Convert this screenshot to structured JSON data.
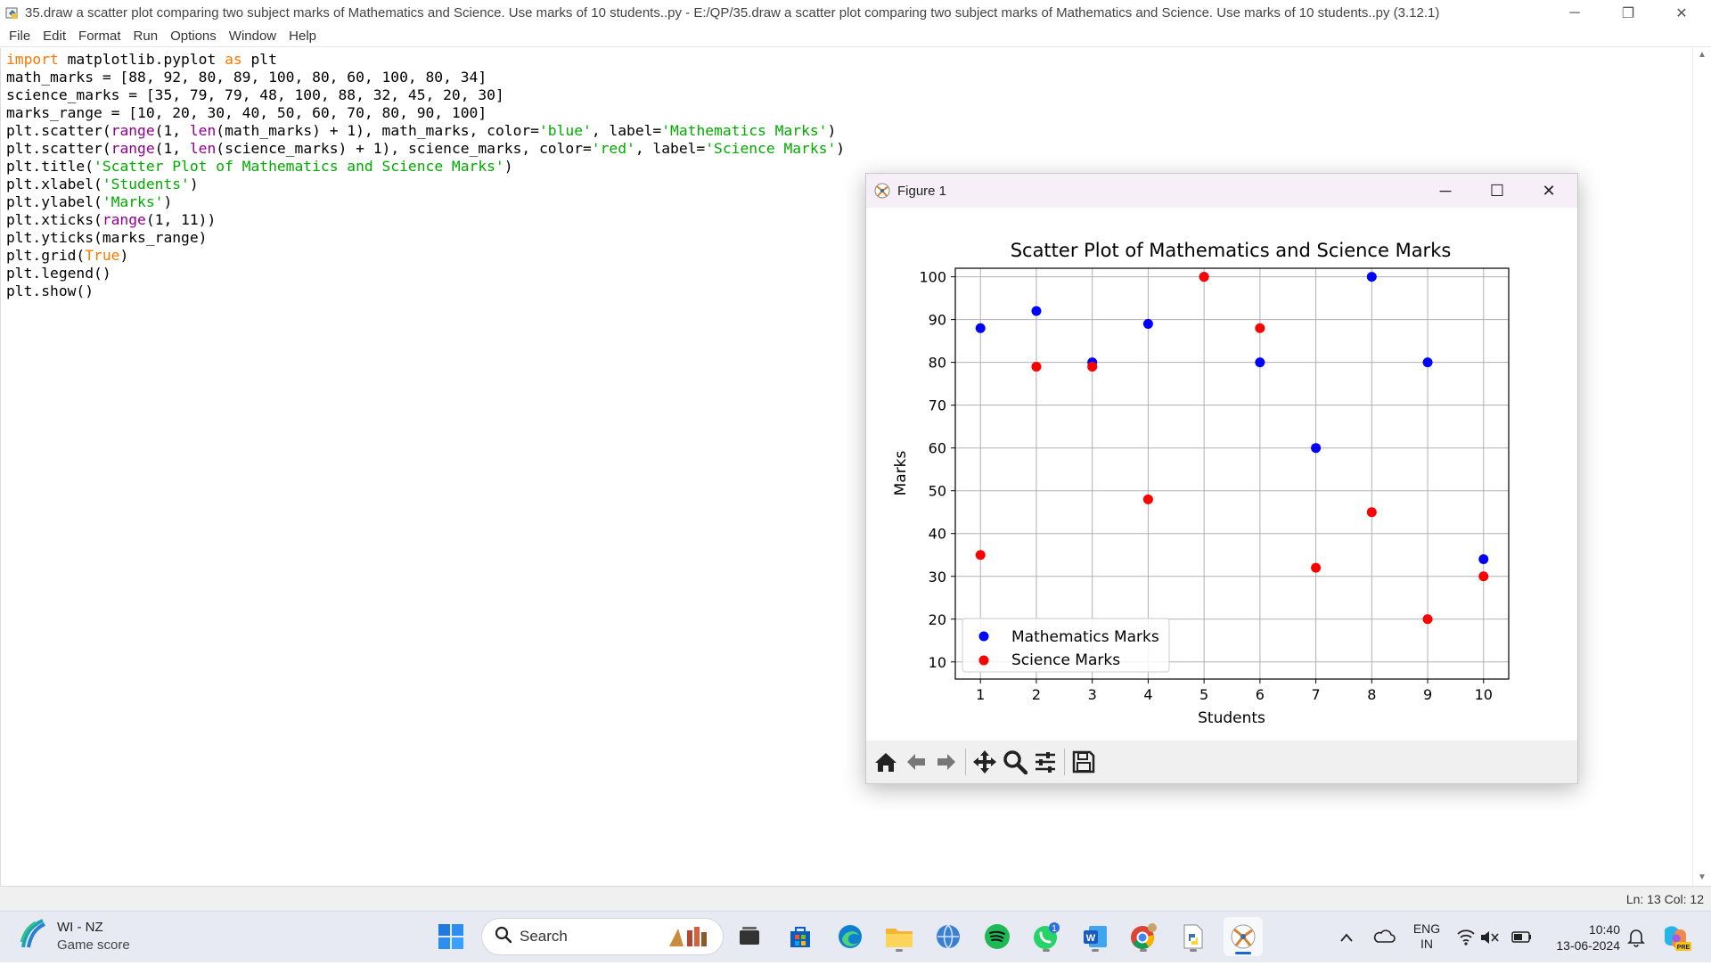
{
  "window": {
    "title": "35.draw a scatter plot comparing two subject marks of Mathematics and Science. Use marks of 10 students..py - E:/QP/35.draw a scatter plot comparing two subject marks of Mathematics and Science. Use marks of 10 students..py (3.12.1)"
  },
  "menu": [
    "File",
    "Edit",
    "Format",
    "Run",
    "Options",
    "Window",
    "Help"
  ],
  "status": {
    "position": "Ln: 13   Col: 12"
  },
  "figure": {
    "window_title": "Figure 1"
  },
  "chart_data": {
    "type": "scatter",
    "title": "Scatter Plot of Mathematics and Science Marks",
    "xlabel": "Students",
    "ylabel": "Marks",
    "x": [
      1,
      2,
      3,
      4,
      5,
      6,
      7,
      8,
      9,
      10
    ],
    "xticks": [
      "1",
      "2",
      "3",
      "4",
      "5",
      "6",
      "7",
      "8",
      "9",
      "10"
    ],
    "yticks": [
      "10",
      "20",
      "30",
      "40",
      "50",
      "60",
      "70",
      "80",
      "90",
      "100"
    ],
    "xlim": [
      0.55,
      10.45
    ],
    "ylim": [
      6,
      102
    ],
    "grid": true,
    "legend_position": "lower-left",
    "series": [
      {
        "name": "Mathematics Marks",
        "color": "#0000ff",
        "values": [
          88,
          92,
          80,
          89,
          100,
          80,
          60,
          100,
          80,
          34
        ]
      },
      {
        "name": "Science Marks",
        "color": "#ff0000",
        "values": [
          35,
          79,
          79,
          48,
          100,
          88,
          32,
          45,
          20,
          30
        ]
      }
    ]
  },
  "taskbar": {
    "weather_title": "WI - NZ",
    "weather_sub": "Game score",
    "search_label": "Search",
    "chat_badge": "1",
    "lang_top": "ENG",
    "lang_bottom": "IN",
    "time": "10:40",
    "date": "13-06-2024",
    "copilot_badge": "PRE"
  }
}
